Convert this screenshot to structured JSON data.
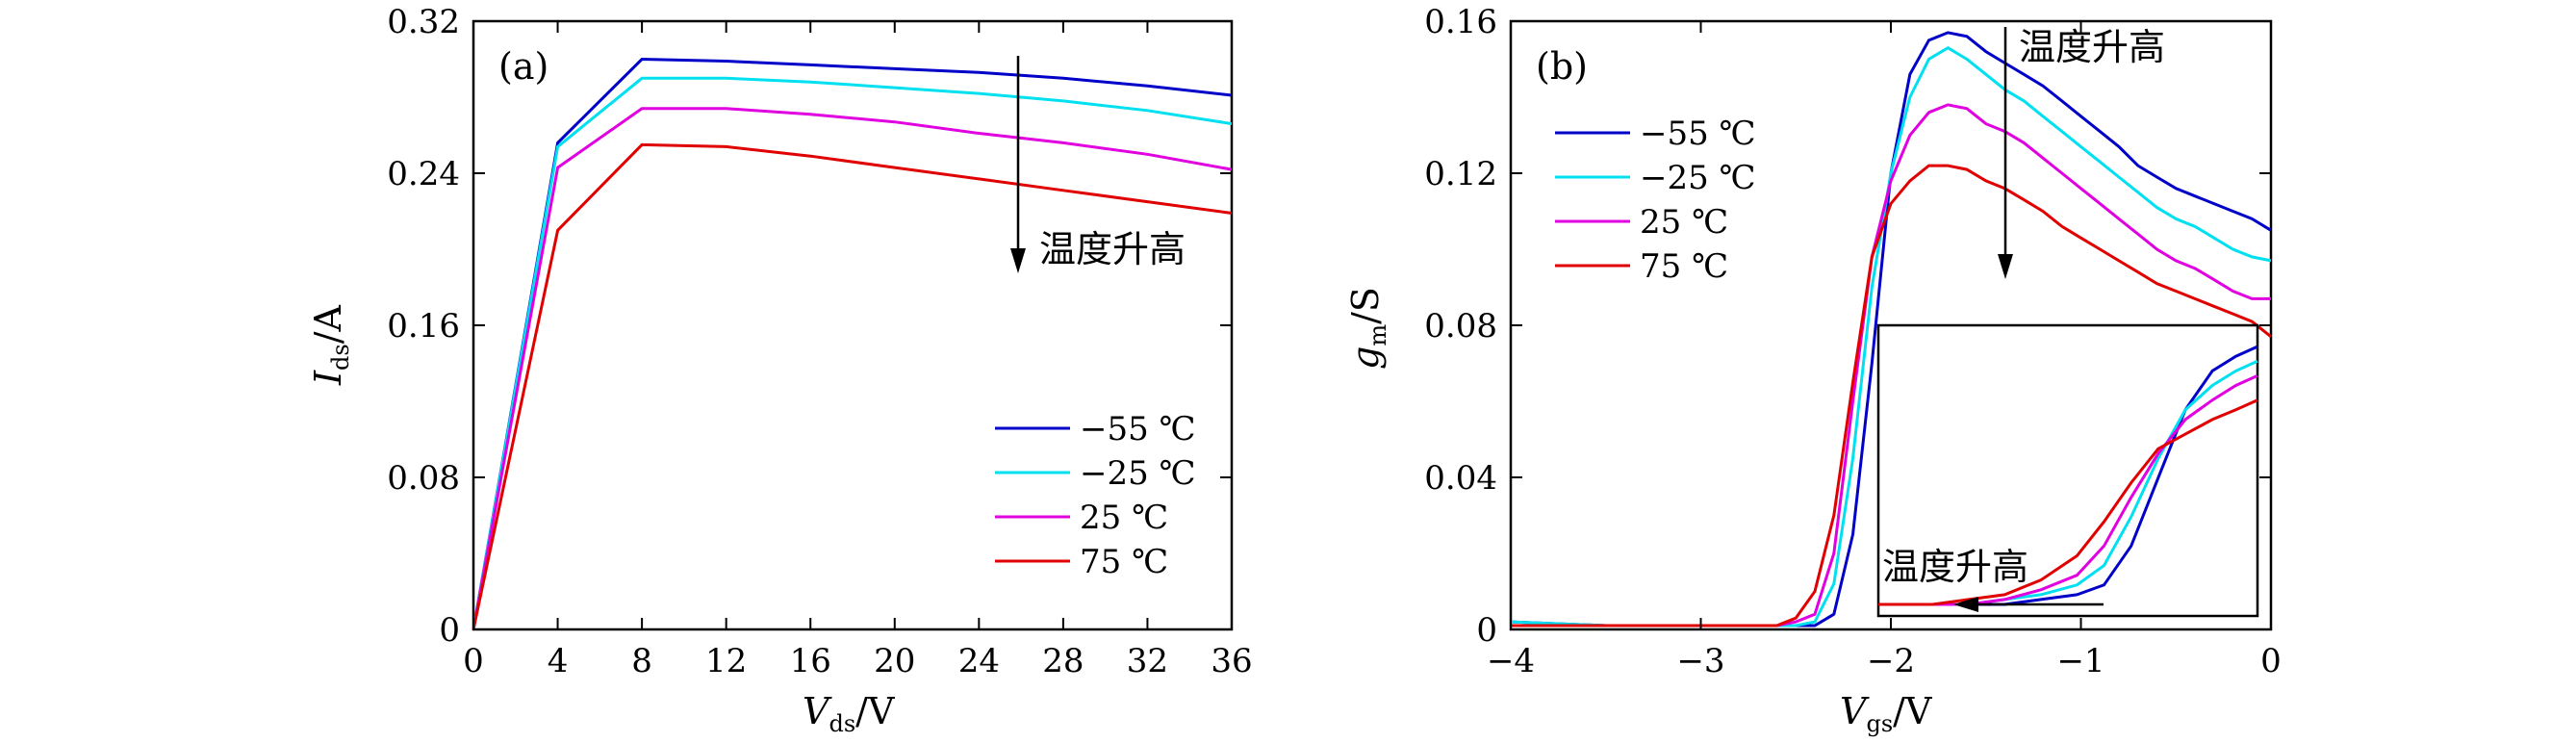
{
  "chart_data": [
    {
      "type": "line",
      "panel": "(a)",
      "xlim": [
        0,
        36
      ],
      "ylim": [
        0,
        0.32
      ],
      "xticks": [
        "0",
        "4",
        "8",
        "12",
        "16",
        "20",
        "24",
        "28",
        "32",
        "36"
      ],
      "yticks": [
        "0",
        "0.08",
        "0.16",
        "0.24",
        "0.32"
      ],
      "xlabel": {
        "sym": "V",
        "sub": "ds",
        "unit": "/V"
      },
      "ylabel": {
        "sym": "I",
        "sub": "ds",
        "unit": "/A"
      },
      "annotation": "温度升高",
      "legend_position": "lower-right",
      "x": [
        0,
        4,
        8,
        12,
        16,
        20,
        24,
        28,
        32,
        36
      ],
      "series": [
        {
          "name": "−55 ℃",
          "color": "#0000c8",
          "values": [
            0,
            0.256,
            0.3,
            0.299,
            0.297,
            0.295,
            0.293,
            0.29,
            0.286,
            0.281
          ]
        },
        {
          "name": "−25 ℃",
          "color": "#00e0f0",
          "values": [
            0,
            0.254,
            0.29,
            0.29,
            0.288,
            0.285,
            0.282,
            0.278,
            0.273,
            0.266
          ]
        },
        {
          "name": "25 ℃",
          "color": "#e000e0",
          "values": [
            0,
            0.243,
            0.274,
            0.274,
            0.271,
            0.267,
            0.261,
            0.256,
            0.25,
            0.242
          ]
        },
        {
          "name": "75 ℃",
          "color": "#e00000",
          "values": [
            0,
            0.21,
            0.255,
            0.254,
            0.249,
            0.243,
            0.237,
            0.231,
            0.225,
            0.219
          ]
        }
      ]
    },
    {
      "type": "line",
      "panel": "(b)",
      "xlim": [
        -4,
        0
      ],
      "ylim": [
        0,
        0.16
      ],
      "xticks": [
        "−4",
        "−3",
        "−2",
        "−1",
        "0"
      ],
      "yticks": [
        "0",
        "0.04",
        "0.08",
        "0.12",
        "0.16"
      ],
      "xlabel": {
        "sym": "V",
        "sub": "gs",
        "unit": "/V"
      },
      "ylabel": {
        "sym": "g",
        "sub": "m",
        "unit": "/S"
      },
      "annotation": "温度升高",
      "inset_annotation": "温度升高",
      "legend_position": "upper-left",
      "x": [
        -4.0,
        -3.5,
        -3.0,
        -2.6,
        -2.5,
        -2.4,
        -2.3,
        -2.2,
        -2.1,
        -2.0,
        -1.9,
        -1.8,
        -1.7,
        -1.6,
        -1.5,
        -1.4,
        -1.3,
        -1.2,
        -1.1,
        -1.0,
        -0.9,
        -0.8,
        -0.7,
        -0.6,
        -0.5,
        -0.4,
        -0.3,
        -0.2,
        -0.1,
        0.0
      ],
      "series": [
        {
          "name": "−55 ℃",
          "color": "#0000c8",
          "values": [
            0.002,
            0.001,
            0.001,
            0.001,
            0.001,
            0.001,
            0.004,
            0.025,
            0.07,
            0.12,
            0.146,
            0.155,
            0.157,
            0.156,
            0.152,
            0.149,
            0.146,
            0.143,
            0.139,
            0.135,
            0.131,
            0.127,
            0.122,
            0.119,
            0.116,
            0.114,
            0.112,
            0.11,
            0.108,
            0.105
          ]
        },
        {
          "name": "−25 ℃",
          "color": "#00e0f0",
          "values": [
            0.002,
            0.001,
            0.001,
            0.001,
            0.001,
            0.002,
            0.012,
            0.045,
            0.09,
            0.12,
            0.14,
            0.15,
            0.153,
            0.15,
            0.146,
            0.142,
            0.139,
            0.135,
            0.131,
            0.127,
            0.123,
            0.119,
            0.115,
            0.111,
            0.108,
            0.106,
            0.103,
            0.1,
            0.098,
            0.097
          ]
        },
        {
          "name": "25 ℃",
          "color": "#e000e0",
          "values": [
            0.001,
            0.001,
            0.001,
            0.001,
            0.002,
            0.004,
            0.02,
            0.06,
            0.098,
            0.118,
            0.13,
            0.136,
            0.138,
            0.137,
            0.133,
            0.131,
            0.128,
            0.124,
            0.12,
            0.116,
            0.112,
            0.108,
            0.104,
            0.1,
            0.097,
            0.095,
            0.092,
            0.089,
            0.087,
            0.087
          ]
        },
        {
          "name": "75 ℃",
          "color": "#e00000",
          "values": [
            0.001,
            0.001,
            0.001,
            0.001,
            0.003,
            0.01,
            0.03,
            0.065,
            0.098,
            0.112,
            0.118,
            0.122,
            0.122,
            0.121,
            0.118,
            0.116,
            0.113,
            0.11,
            0.106,
            0.103,
            0.1,
            0.097,
            0.094,
            0.091,
            0.089,
            0.087,
            0.085,
            0.083,
            0.081,
            0.077
          ]
        }
      ]
    }
  ]
}
